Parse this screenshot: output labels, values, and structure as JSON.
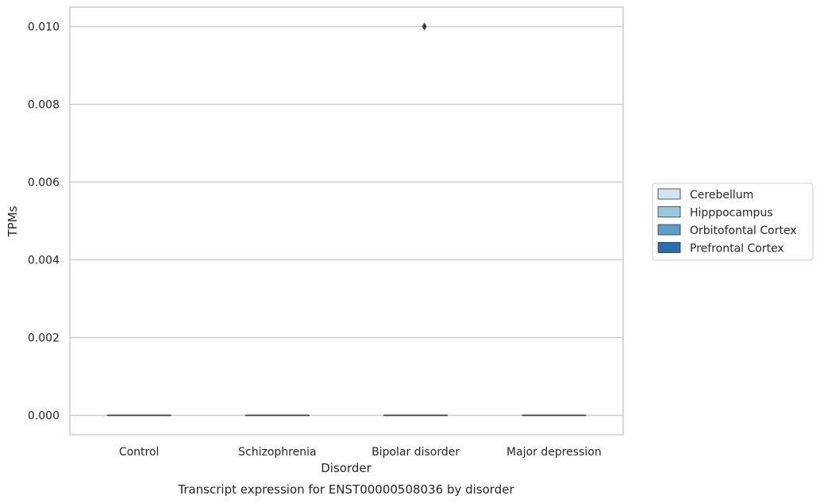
{
  "chart_data": {
    "type": "box",
    "title": "",
    "caption": "Transcript expression for ENST00000508036 by disorder",
    "xlabel": "Disorder",
    "ylabel": "TPMs",
    "categories": [
      "Control",
      "Schizophrenia",
      "Bipolar disorder",
      "Major depression"
    ],
    "ylim": [
      -0.0005,
      0.0105
    ],
    "yticks": [
      0.0,
      0.002,
      0.004,
      0.006,
      0.008,
      0.01
    ],
    "ytick_labels": [
      "0.000",
      "0.002",
      "0.004",
      "0.006",
      "0.008",
      "0.010"
    ],
    "grid": true,
    "legend_position": "right",
    "series": [
      {
        "name": "Cerebellum",
        "color": "#d2e3f3"
      },
      {
        "name": "Hipppocampus",
        "color": "#9ac8e1"
      },
      {
        "name": "Orbitofontal Cortex",
        "color": "#5a9ec9"
      },
      {
        "name": "Prefrontal Cortex",
        "color": "#2a6fb0"
      }
    ],
    "boxes": [
      {
        "category": "Control",
        "median": 0.0,
        "q1": 0.0,
        "q3": 0.0,
        "whisker_low": 0.0,
        "whisker_high": 0.0,
        "outliers": []
      },
      {
        "category": "Schizophrenia",
        "median": 0.0,
        "q1": 0.0,
        "q3": 0.0,
        "whisker_low": 0.0,
        "whisker_high": 0.0,
        "outliers": []
      },
      {
        "category": "Bipolar disorder",
        "median": 0.0,
        "q1": 0.0,
        "q3": 0.0,
        "whisker_low": 0.0,
        "whisker_high": 0.0,
        "outliers": [
          0.01
        ]
      },
      {
        "category": "Major depression",
        "median": 0.0,
        "q1": 0.0,
        "q3": 0.0,
        "whisker_low": 0.0,
        "whisker_high": 0.0,
        "outliers": []
      }
    ],
    "colors": {
      "grid": "#cccccc",
      "frame": "#cccccc",
      "median_line": "#3a3a3a",
      "outlier": "#3a3a3a",
      "legend_border": "#cccccc"
    }
  }
}
